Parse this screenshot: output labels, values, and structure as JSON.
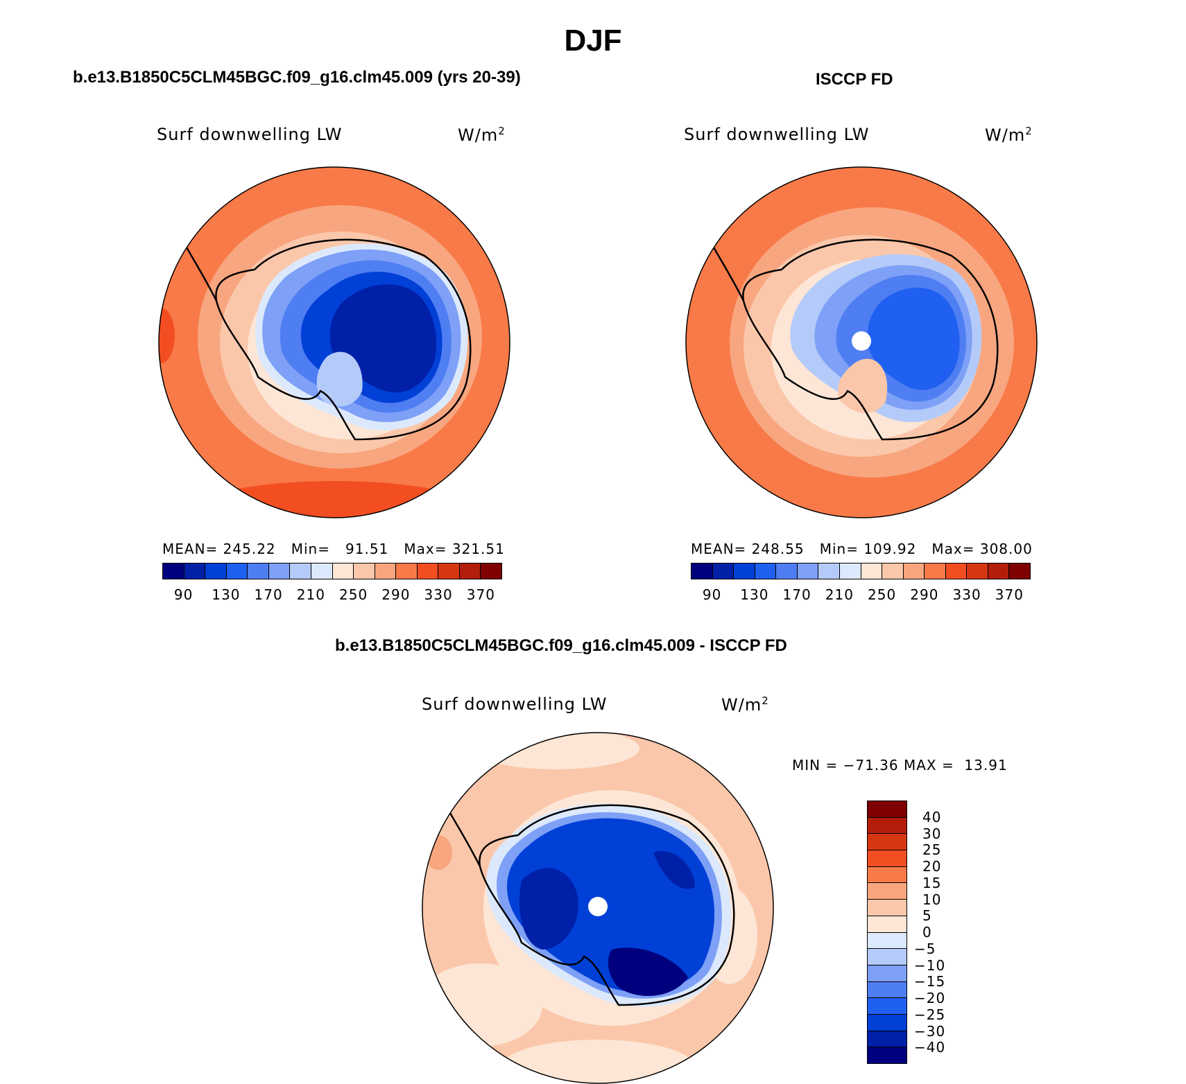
{
  "title": "DJF",
  "colors": {
    "abs_levels": [
      "#00007f",
      "#0020a8",
      "#0040d6",
      "#2060f0",
      "#4f7ef3",
      "#7ea0f6",
      "#b4cbfa",
      "#dce9fc",
      "#fde6d5",
      "#fbc7aa",
      "#f8a67f",
      "#f87a48",
      "#f24e22",
      "#d63612",
      "#b31e0a",
      "#7f0000"
    ],
    "diff_levels": [
      "#00007f",
      "#0020a8",
      "#0040d6",
      "#2060f0",
      "#4f7ef3",
      "#7ea0f6",
      "#b4cbfa",
      "#dce9fc",
      "#fde6d5",
      "#fbc7aa",
      "#f8a67f",
      "#f87a48",
      "#f24e22",
      "#d63612",
      "#b31e0a",
      "#7f0000"
    ]
  },
  "panels": {
    "model": {
      "title": "b.e13.B1850C5CLM45BGC.f09_g16.clm45.009 (yrs 20-39)",
      "variable": "Surf downwelling LW",
      "units_base": "W/m",
      "units_exp": "2",
      "mean_label": "MEAN=",
      "mean": "245.22",
      "min_label": "Min=",
      "min": "91.51",
      "max_label": "Max=",
      "max": "321.51"
    },
    "obs": {
      "title": "ISCCP FD",
      "variable": "Surf downwelling LW",
      "units_base": "W/m",
      "units_exp": "2",
      "mean_label": "MEAN=",
      "mean": "248.55",
      "min_label": "Min=",
      "min": "109.92",
      "max_label": "Max=",
      "max": "308.00"
    },
    "diff": {
      "title": "b.e13.B1850C5CLM45BGC.f09_g16.clm45.009 - ISCCP FD",
      "variable": "Surf downwelling LW",
      "units_base": "W/m",
      "units_exp": "2",
      "minmax": "MIN = −71.36 MAX =  13.91"
    }
  },
  "chart_data": [
    {
      "type": "heatmap",
      "title": "b.e13.B1850C5CLM45BGC.f09_g16.clm45.009 (yrs 20-39)",
      "projection": "south polar stereographic",
      "variable": "Surf downwelling LW",
      "units": "W/m2",
      "stats": {
        "mean": 245.22,
        "min": 91.51,
        "max": 321.51
      },
      "colorbar_ticks": [
        "90",
        "130",
        "170",
        "210",
        "250",
        "290",
        "330",
        "370"
      ],
      "contour_levels": [
        90,
        110,
        130,
        150,
        170,
        190,
        210,
        230,
        250,
        270,
        290,
        310,
        330,
        350,
        370
      ]
    },
    {
      "type": "heatmap",
      "title": "ISCCP FD",
      "projection": "south polar stereographic",
      "variable": "Surf downwelling LW",
      "units": "W/m2",
      "stats": {
        "mean": 248.55,
        "min": 109.92,
        "max": 308.0
      },
      "colorbar_ticks": [
        "90",
        "130",
        "170",
        "210",
        "250",
        "290",
        "330",
        "370"
      ],
      "contour_levels": [
        90,
        110,
        130,
        150,
        170,
        190,
        210,
        230,
        250,
        270,
        290,
        310,
        330,
        350,
        370
      ]
    },
    {
      "type": "heatmap",
      "title": "b.e13.B1850C5CLM45BGC.f09_g16.clm45.009 - ISCCP FD",
      "projection": "south polar stereographic",
      "variable": "Surf downwelling LW",
      "units": "W/m2",
      "stats": {
        "min": -71.36,
        "max": 13.91
      },
      "colorbar_ticks": [
        "40",
        "30",
        "25",
        "20",
        "15",
        "10",
        "5",
        "0",
        "−5",
        "−10",
        "−15",
        "−20",
        "−25",
        "−30",
        "−40"
      ]
    }
  ]
}
